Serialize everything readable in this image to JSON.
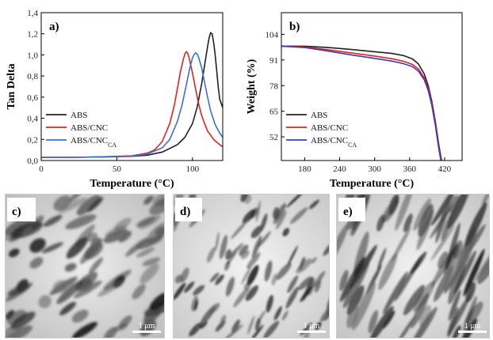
{
  "chart_data": [
    {
      "panel_label": "a)",
      "type": "line",
      "xlabel": "Temperature (°C)",
      "ylabel": "Tan Delta",
      "xlim": [
        0,
        120
      ],
      "ylim": [
        0,
        1.4
      ],
      "x_ticks": [
        "0",
        "50",
        "100"
      ],
      "x_tick_values": [
        0,
        50,
        100
      ],
      "y_ticks": [
        "0,0",
        "0,2",
        "0,4",
        "0,6",
        "0,8",
        "1,0",
        "1,2",
        "1,4"
      ],
      "y_tick_values": [
        0,
        0.2,
        0.4,
        0.6,
        0.8,
        1.0,
        1.2,
        1.4
      ],
      "legend_position": "bottom-left",
      "series": [
        {
          "name": "ABS",
          "color": "#222222",
          "x": [
            0,
            20,
            40,
            60,
            70,
            80,
            90,
            95,
            100,
            103,
            106,
            108,
            110,
            111,
            112,
            113,
            114,
            115,
            116,
            117,
            118,
            120
          ],
          "y": [
            0.03,
            0.03,
            0.033,
            0.04,
            0.05,
            0.08,
            0.15,
            0.22,
            0.35,
            0.5,
            0.72,
            0.9,
            1.08,
            1.16,
            1.21,
            1.2,
            1.12,
            1.0,
            0.85,
            0.7,
            0.58,
            0.5
          ]
        },
        {
          "name": "ABS/CNC",
          "color": "#e02424",
          "x": [
            0,
            20,
            40,
            60,
            70,
            75,
            80,
            85,
            88,
            90,
            92,
            94,
            95,
            96,
            97,
            98,
            100,
            102,
            104,
            106,
            108,
            110,
            114,
            118,
            120
          ],
          "y": [
            0.03,
            0.03,
            0.035,
            0.045,
            0.07,
            0.1,
            0.18,
            0.35,
            0.52,
            0.68,
            0.84,
            0.96,
            1.01,
            1.03,
            1.01,
            0.96,
            0.83,
            0.68,
            0.54,
            0.43,
            0.35,
            0.28,
            0.2,
            0.15,
            0.13
          ]
        },
        {
          "name": "ABS/CNC",
          "name_subscript": "CA",
          "color": "#3b6fd4",
          "x": [
            0,
            20,
            40,
            60,
            70,
            80,
            85,
            90,
            93,
            96,
            98,
            100,
            101,
            102,
            103,
            104,
            106,
            108,
            110,
            112,
            115,
            118,
            120
          ],
          "y": [
            0.03,
            0.03,
            0.033,
            0.042,
            0.06,
            0.12,
            0.2,
            0.37,
            0.52,
            0.72,
            0.86,
            0.97,
            1.0,
            1.02,
            1.01,
            0.98,
            0.88,
            0.74,
            0.6,
            0.47,
            0.34,
            0.26,
            0.22
          ]
        }
      ]
    },
    {
      "panel_label": "b)",
      "type": "line",
      "xlabel": "Temperature (°C)",
      "ylabel": "Weight (%)",
      "xlim": [
        140,
        450
      ],
      "ylim": [
        40,
        115
      ],
      "x_ticks": [
        "180",
        "240",
        "300",
        "360",
        "420"
      ],
      "x_tick_values": [
        180,
        240,
        300,
        360,
        420
      ],
      "y_ticks": [
        "52",
        "65",
        "78",
        "91",
        "104"
      ],
      "y_tick_values": [
        52,
        65,
        78,
        91,
        104
      ],
      "legend_position": "bottom-left",
      "series": [
        {
          "name": "ABS",
          "color": "#222222",
          "x": [
            140,
            180,
            220,
            260,
            300,
            330,
            350,
            365,
            375,
            385,
            392,
            398,
            404,
            410,
            416
          ],
          "y": [
            98,
            98,
            97.3,
            96.3,
            95.2,
            94.3,
            93.2,
            91.5,
            89,
            84,
            78,
            70,
            60,
            48,
            38
          ]
        },
        {
          "name": "ABS/CNC",
          "color": "#e02424",
          "x": [
            140,
            180,
            220,
            260,
            300,
            330,
            350,
            365,
            375,
            385,
            392,
            398,
            404,
            410,
            416
          ],
          "y": [
            98,
            97.6,
            96.2,
            94.6,
            93,
            91.6,
            90.3,
            88.7,
            86.5,
            82,
            76.5,
            69,
            59,
            47,
            37
          ]
        },
        {
          "name": "ABS/CNC",
          "name_subscript": "CA",
          "color": "#3b3bb8",
          "x": [
            140,
            180,
            220,
            260,
            300,
            330,
            350,
            365,
            375,
            385,
            392,
            398,
            404,
            410,
            416
          ],
          "y": [
            98,
            97.3,
            95.5,
            93.6,
            91.8,
            90.4,
            89.1,
            87.6,
            85.4,
            81,
            75.5,
            68,
            58,
            46,
            36
          ]
        }
      ]
    }
  ],
  "micrographs": [
    {
      "panel_label": "c)",
      "scale_bar_label": "1 μm"
    },
    {
      "panel_label": "d)",
      "scale_bar_label": "1 μm"
    },
    {
      "panel_label": "e)",
      "scale_bar_label": "1 μm"
    }
  ]
}
